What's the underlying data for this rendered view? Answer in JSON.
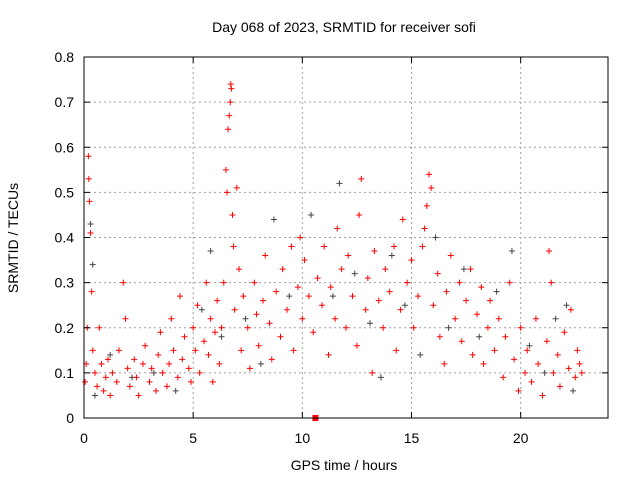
{
  "chart_data": {
    "type": "scatter",
    "title": "Day 068 of 2023, SRMTID for receiver sofi",
    "xlabel": "GPS time / hours",
    "ylabel": "SRMTID / TECUs",
    "xlim": [
      0,
      24
    ],
    "ylim": [
      0,
      0.8
    ],
    "xticks": [
      "0",
      "5",
      "10",
      "15",
      "20"
    ],
    "xtick_values": [
      0,
      5,
      10,
      15,
      20
    ],
    "yticks": [
      "0",
      "0.1",
      "0.2",
      "0.3",
      "0.4",
      "0.5",
      "0.6",
      "0.7",
      "0.8"
    ],
    "ytick_values": [
      0,
      0.1,
      0.2,
      0.3,
      0.4,
      0.5,
      0.6,
      0.7,
      0.8
    ],
    "grid": true,
    "colors": {
      "series_red": "#ff0000",
      "series_black": "#444444"
    },
    "series": [
      {
        "name": "red",
        "marker": "plus",
        "color": "#ff0000",
        "points": [
          [
            0.05,
            0.08
          ],
          [
            0.1,
            0.12
          ],
          [
            0.15,
            0.2
          ],
          [
            0.2,
            0.58
          ],
          [
            0.22,
            0.53
          ],
          [
            0.25,
            0.48
          ],
          [
            0.3,
            0.41
          ],
          [
            0.35,
            0.28
          ],
          [
            0.4,
            0.15
          ],
          [
            0.5,
            0.1
          ],
          [
            0.6,
            0.07
          ],
          [
            0.7,
            0.2
          ],
          [
            0.8,
            0.12
          ],
          [
            0.9,
            0.06
          ],
          [
            1.0,
            0.09
          ],
          [
            1.1,
            0.13
          ],
          [
            1.2,
            0.05
          ],
          [
            1.3,
            0.1
          ],
          [
            1.5,
            0.08
          ],
          [
            1.6,
            0.15
          ],
          [
            1.8,
            0.3
          ],
          [
            1.9,
            0.22
          ],
          [
            2.0,
            0.11
          ],
          [
            2.1,
            0.07
          ],
          [
            2.3,
            0.13
          ],
          [
            2.4,
            0.09
          ],
          [
            2.5,
            0.05
          ],
          [
            2.7,
            0.12
          ],
          [
            2.8,
            0.16
          ],
          [
            3.0,
            0.08
          ],
          [
            3.1,
            0.11
          ],
          [
            3.3,
            0.06
          ],
          [
            3.4,
            0.14
          ],
          [
            3.5,
            0.19
          ],
          [
            3.6,
            0.1
          ],
          [
            3.8,
            0.07
          ],
          [
            3.9,
            0.12
          ],
          [
            4.0,
            0.22
          ],
          [
            4.1,
            0.15
          ],
          [
            4.3,
            0.09
          ],
          [
            4.4,
            0.27
          ],
          [
            4.5,
            0.13
          ],
          [
            4.6,
            0.18
          ],
          [
            4.8,
            0.11
          ],
          [
            4.9,
            0.08
          ],
          [
            5.0,
            0.2
          ],
          [
            5.1,
            0.15
          ],
          [
            5.2,
            0.25
          ],
          [
            5.3,
            0.1
          ],
          [
            5.5,
            0.17
          ],
          [
            5.6,
            0.3
          ],
          [
            5.7,
            0.14
          ],
          [
            5.8,
            0.22
          ],
          [
            5.9,
            0.08
          ],
          [
            6.0,
            0.19
          ],
          [
            6.1,
            0.26
          ],
          [
            6.2,
            0.12
          ],
          [
            6.3,
            0.2
          ],
          [
            6.4,
            0.3
          ],
          [
            6.5,
            0.55
          ],
          [
            6.55,
            0.5
          ],
          [
            6.6,
            0.64
          ],
          [
            6.65,
            0.67
          ],
          [
            6.7,
            0.7
          ],
          [
            6.72,
            0.74
          ],
          [
            6.75,
            0.73
          ],
          [
            6.8,
            0.45
          ],
          [
            6.85,
            0.38
          ],
          [
            6.9,
            0.24
          ],
          [
            7.0,
            0.51
          ],
          [
            7.1,
            0.33
          ],
          [
            7.2,
            0.15
          ],
          [
            7.3,
            0.27
          ],
          [
            7.5,
            0.2
          ],
          [
            7.6,
            0.11
          ],
          [
            7.8,
            0.3
          ],
          [
            7.9,
            0.23
          ],
          [
            8.0,
            0.16
          ],
          [
            8.2,
            0.26
          ],
          [
            8.3,
            0.36
          ],
          [
            8.5,
            0.21
          ],
          [
            8.6,
            0.13
          ],
          [
            8.8,
            0.28
          ],
          [
            9.0,
            0.18
          ],
          [
            9.1,
            0.33
          ],
          [
            9.3,
            0.24
          ],
          [
            9.5,
            0.38
          ],
          [
            9.6,
            0.15
          ],
          [
            9.8,
            0.29
          ],
          [
            9.9,
            0.4
          ],
          [
            10.0,
            0.22
          ],
          [
            10.1,
            0.35
          ],
          [
            10.3,
            0.27
          ],
          [
            10.5,
            0.19
          ],
          [
            10.6,
            0.0
          ],
          [
            10.7,
            0.31
          ],
          [
            10.9,
            0.25
          ],
          [
            11.0,
            0.38
          ],
          [
            11.2,
            0.14
          ],
          [
            11.3,
            0.29
          ],
          [
            11.5,
            0.22
          ],
          [
            11.6,
            0.42
          ],
          [
            11.8,
            0.33
          ],
          [
            12.0,
            0.2
          ],
          [
            12.1,
            0.36
          ],
          [
            12.3,
            0.27
          ],
          [
            12.5,
            0.16
          ],
          [
            12.6,
            0.45
          ],
          [
            12.7,
            0.53
          ],
          [
            12.9,
            0.24
          ],
          [
            13.0,
            0.31
          ],
          [
            13.2,
            0.1
          ],
          [
            13.3,
            0.37
          ],
          [
            13.5,
            0.26
          ],
          [
            13.7,
            0.2
          ],
          [
            13.8,
            0.33
          ],
          [
            14.0,
            0.28
          ],
          [
            14.2,
            0.38
          ],
          [
            14.3,
            0.15
          ],
          [
            14.5,
            0.24
          ],
          [
            14.6,
            0.44
          ],
          [
            14.8,
            0.3
          ],
          [
            15.0,
            0.35
          ],
          [
            15.1,
            0.2
          ],
          [
            15.3,
            0.27
          ],
          [
            15.5,
            0.38
          ],
          [
            15.6,
            0.42
          ],
          [
            15.7,
            0.47
          ],
          [
            15.8,
            0.54
          ],
          [
            15.9,
            0.51
          ],
          [
            16.0,
            0.25
          ],
          [
            16.2,
            0.32
          ],
          [
            16.3,
            0.18
          ],
          [
            16.5,
            0.12
          ],
          [
            16.6,
            0.28
          ],
          [
            16.8,
            0.36
          ],
          [
            17.0,
            0.22
          ],
          [
            17.2,
            0.3
          ],
          [
            17.3,
            0.17
          ],
          [
            17.5,
            0.26
          ],
          [
            17.7,
            0.33
          ],
          [
            17.8,
            0.14
          ],
          [
            18.0,
            0.23
          ],
          [
            18.2,
            0.29
          ],
          [
            18.3,
            0.12
          ],
          [
            18.5,
            0.2
          ],
          [
            18.6,
            0.26
          ],
          [
            18.8,
            0.15
          ],
          [
            19.0,
            0.22
          ],
          [
            19.2,
            0.09
          ],
          [
            19.3,
            0.18
          ],
          [
            19.5,
            0.3
          ],
          [
            19.7,
            0.13
          ],
          [
            19.9,
            0.06
          ],
          [
            20.0,
            0.2
          ],
          [
            20.2,
            0.1
          ],
          [
            20.3,
            0.15
          ],
          [
            20.5,
            0.08
          ],
          [
            20.7,
            0.22
          ],
          [
            20.8,
            0.12
          ],
          [
            21.0,
            0.05
          ],
          [
            21.2,
            0.17
          ],
          [
            21.3,
            0.37
          ],
          [
            21.4,
            0.3
          ],
          [
            21.5,
            0.1
          ],
          [
            21.7,
            0.14
          ],
          [
            21.8,
            0.07
          ],
          [
            22.0,
            0.19
          ],
          [
            22.2,
            0.11
          ],
          [
            22.3,
            0.24
          ],
          [
            22.5,
            0.09
          ],
          [
            22.6,
            0.15
          ],
          [
            22.7,
            0.12
          ],
          [
            22.8,
            0.1
          ]
        ]
      },
      {
        "name": "black",
        "marker": "plus",
        "color": "#444444",
        "points": [
          [
            0.3,
            0.43
          ],
          [
            0.4,
            0.34
          ],
          [
            0.5,
            0.05
          ],
          [
            1.2,
            0.14
          ],
          [
            2.2,
            0.09
          ],
          [
            3.2,
            0.1
          ],
          [
            4.2,
            0.06
          ],
          [
            5.4,
            0.24
          ],
          [
            5.8,
            0.37
          ],
          [
            6.3,
            0.18
          ],
          [
            7.4,
            0.22
          ],
          [
            8.1,
            0.12
          ],
          [
            8.7,
            0.44
          ],
          [
            9.4,
            0.27
          ],
          [
            10.4,
            0.45
          ],
          [
            11.4,
            0.27
          ],
          [
            11.7,
            0.52
          ],
          [
            12.4,
            0.32
          ],
          [
            13.1,
            0.21
          ],
          [
            13.6,
            0.09
          ],
          [
            14.1,
            0.36
          ],
          [
            14.7,
            0.25
          ],
          [
            15.4,
            0.14
          ],
          [
            16.1,
            0.4
          ],
          [
            16.7,
            0.2
          ],
          [
            17.4,
            0.33
          ],
          [
            18.1,
            0.18
          ],
          [
            18.9,
            0.28
          ],
          [
            19.6,
            0.37
          ],
          [
            20.4,
            0.16
          ],
          [
            21.1,
            0.1
          ],
          [
            21.6,
            0.22
          ],
          [
            22.1,
            0.25
          ],
          [
            22.4,
            0.06
          ]
        ]
      }
    ]
  }
}
